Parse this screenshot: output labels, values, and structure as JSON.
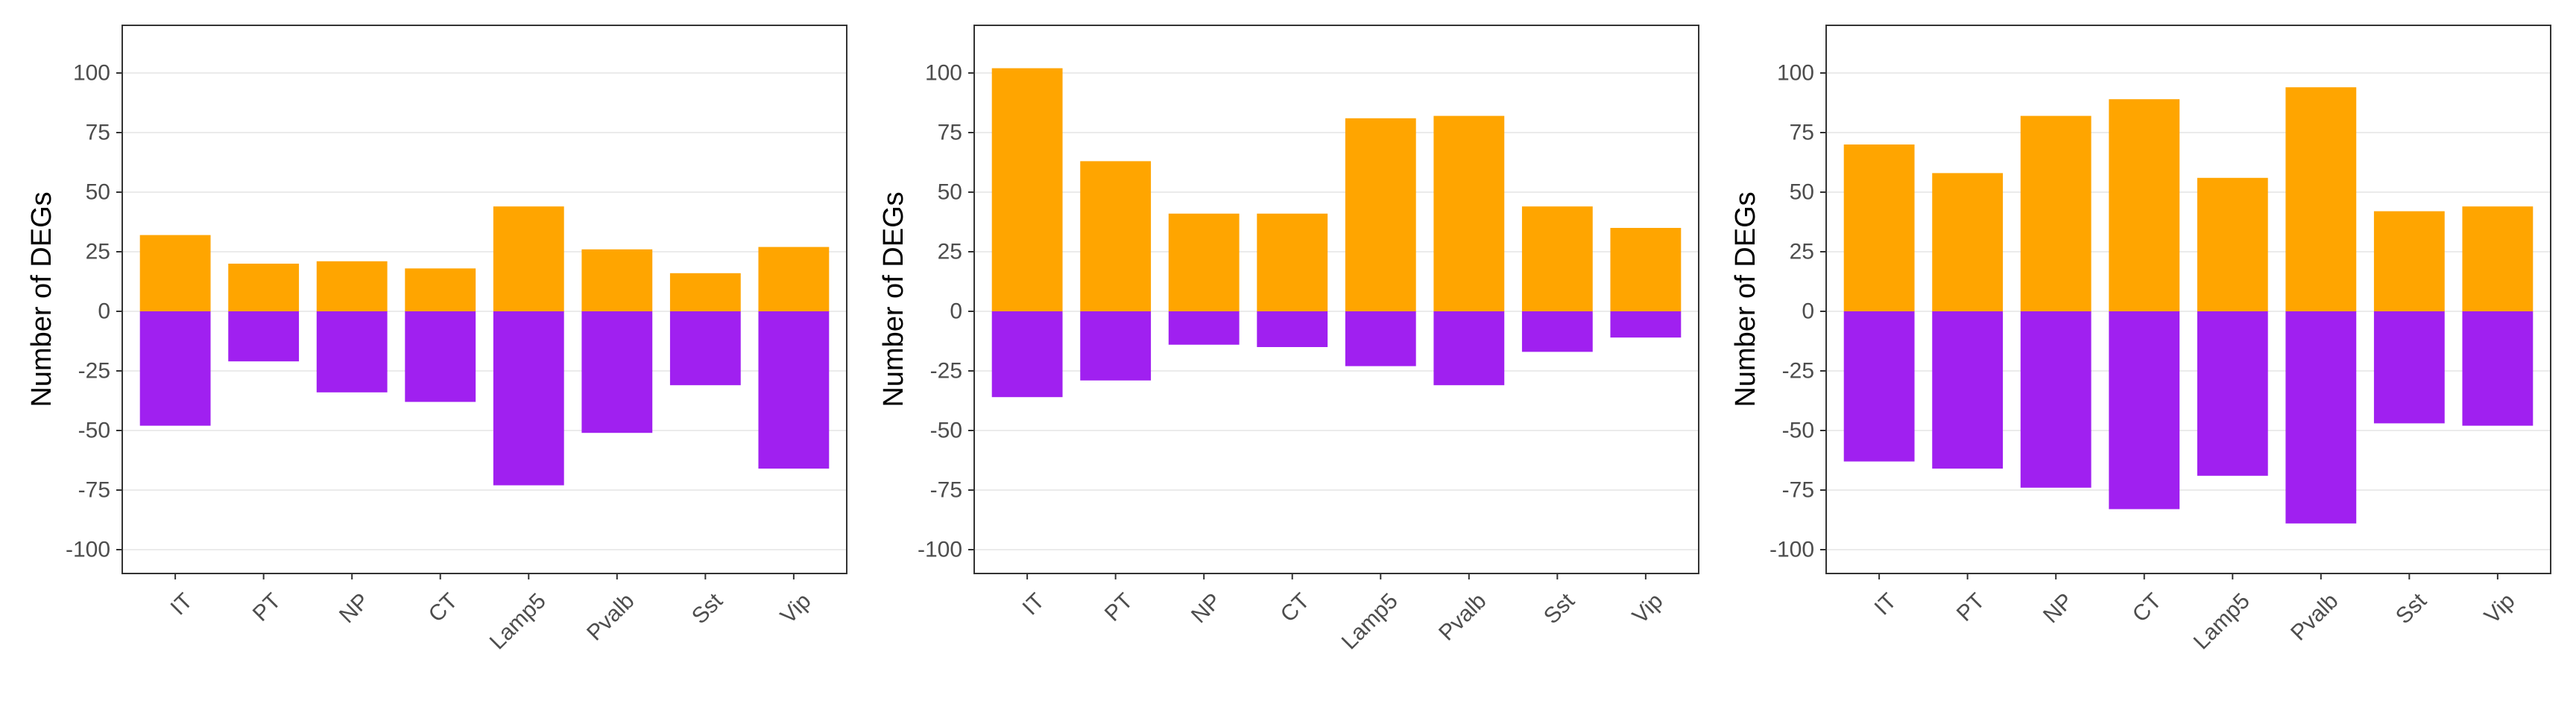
{
  "colors": {
    "up": "#FFA500",
    "down": "#A020F0",
    "panel_border": "#333333",
    "grid": "#EBEBEB",
    "tick_text": "#4D4D4D"
  },
  "chart_data": [
    {
      "type": "bar",
      "categories": [
        "IT",
        "PT",
        "NP",
        "CT",
        "Lamp5",
        "Pvalb",
        "Sst",
        "Vip"
      ],
      "series": [
        {
          "values": [
            32,
            20,
            21,
            18,
            44,
            26,
            16,
            27
          ]
        },
        {
          "values": [
            -48,
            -21,
            -34,
            -38,
            -73,
            -51,
            -31,
            -66
          ]
        }
      ],
      "ylabel": "Number of DEGs",
      "ylim": [
        -110,
        120
      ],
      "yticks": [
        100,
        75,
        50,
        25,
        0,
        -25,
        -50,
        -75,
        -100
      ],
      "grid": true
    },
    {
      "type": "bar",
      "categories": [
        "IT",
        "PT",
        "NP",
        "CT",
        "Lamp5",
        "Pvalb",
        "Sst",
        "Vip"
      ],
      "series": [
        {
          "values": [
            102,
            63,
            41,
            41,
            81,
            82,
            44,
            35
          ]
        },
        {
          "values": [
            -36,
            -29,
            -14,
            -15,
            -23,
            -31,
            -17,
            -11
          ]
        }
      ],
      "ylabel": "Number of DEGs",
      "ylim": [
        -110,
        120
      ],
      "yticks": [
        100,
        75,
        50,
        25,
        0,
        -25,
        -50,
        -75,
        -100
      ],
      "grid": true
    },
    {
      "type": "bar",
      "categories": [
        "IT",
        "PT",
        "NP",
        "CT",
        "Lamp5",
        "Pvalb",
        "Sst",
        "Vip"
      ],
      "series": [
        {
          "values": [
            70,
            58,
            82,
            89,
            56,
            94,
            42,
            44
          ]
        },
        {
          "values": [
            -63,
            -66,
            -74,
            -83,
            -69,
            -89,
            -47,
            -48
          ]
        }
      ],
      "ylabel": "Number of DEGs",
      "ylim": [
        -110,
        120
      ],
      "yticks": [
        100,
        75,
        50,
        25,
        0,
        -25,
        -50,
        -75,
        -100
      ],
      "grid": true
    }
  ]
}
